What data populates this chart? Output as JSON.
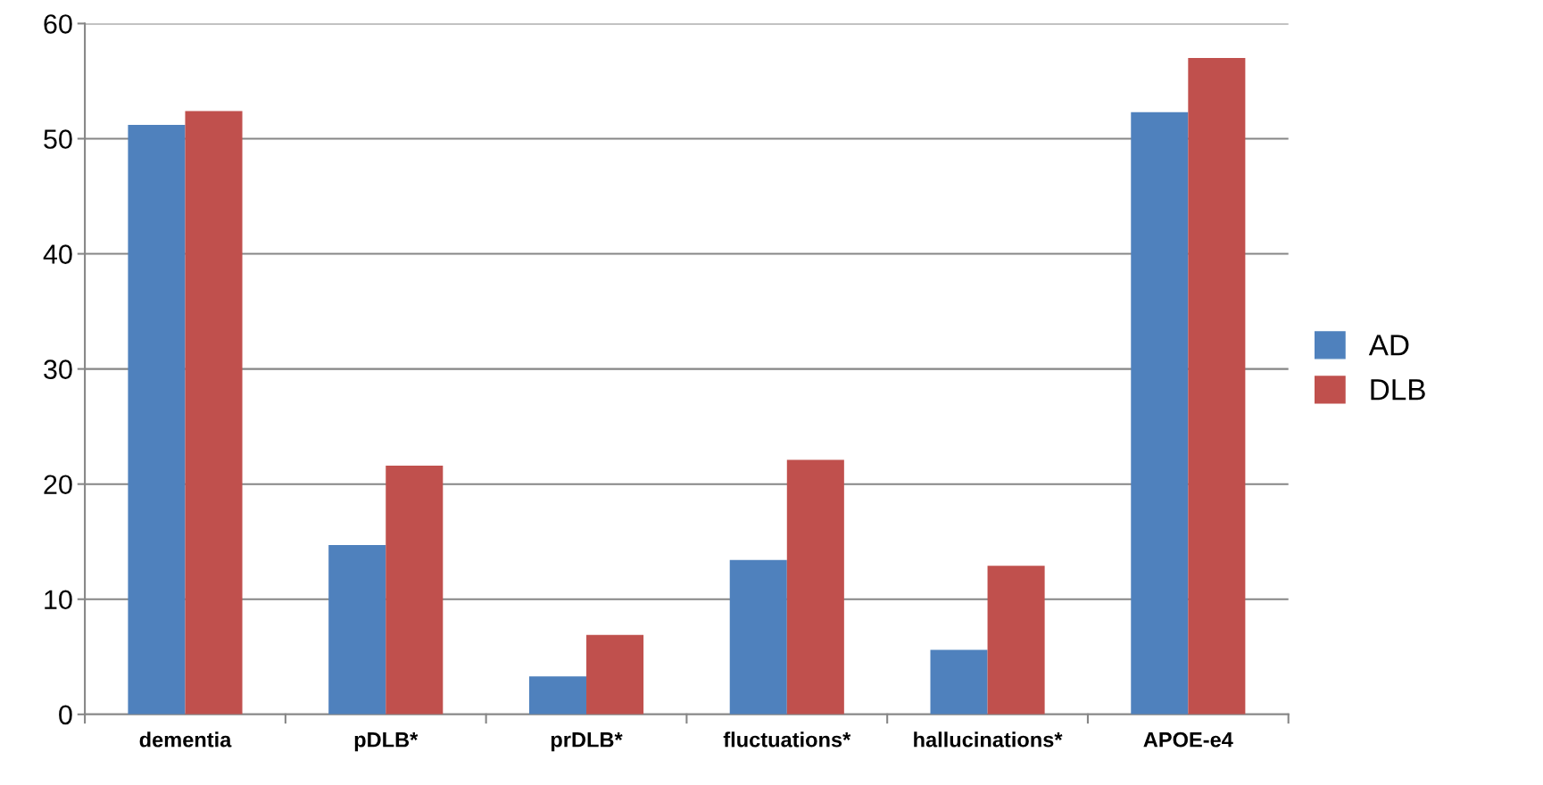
{
  "chart_data": {
    "type": "bar",
    "categories": [
      "dementia",
      "pDLB*",
      "prDLB*",
      "fluctuations*",
      "hallucinations*",
      "APOE-e4"
    ],
    "series": [
      {
        "name": "AD",
        "color": "#4f81bd",
        "values": [
          51.2,
          14.7,
          3.3,
          13.4,
          5.6,
          52.3
        ]
      },
      {
        "name": "DLB",
        "color": "#c0504d",
        "values": [
          52.4,
          21.6,
          6.9,
          22.1,
          12.9,
          57.0
        ]
      }
    ],
    "ylim": [
      0,
      60
    ],
    "yticks": [
      0,
      10,
      20,
      30,
      40,
      50,
      60
    ],
    "grid": "y",
    "legend": "right"
  }
}
